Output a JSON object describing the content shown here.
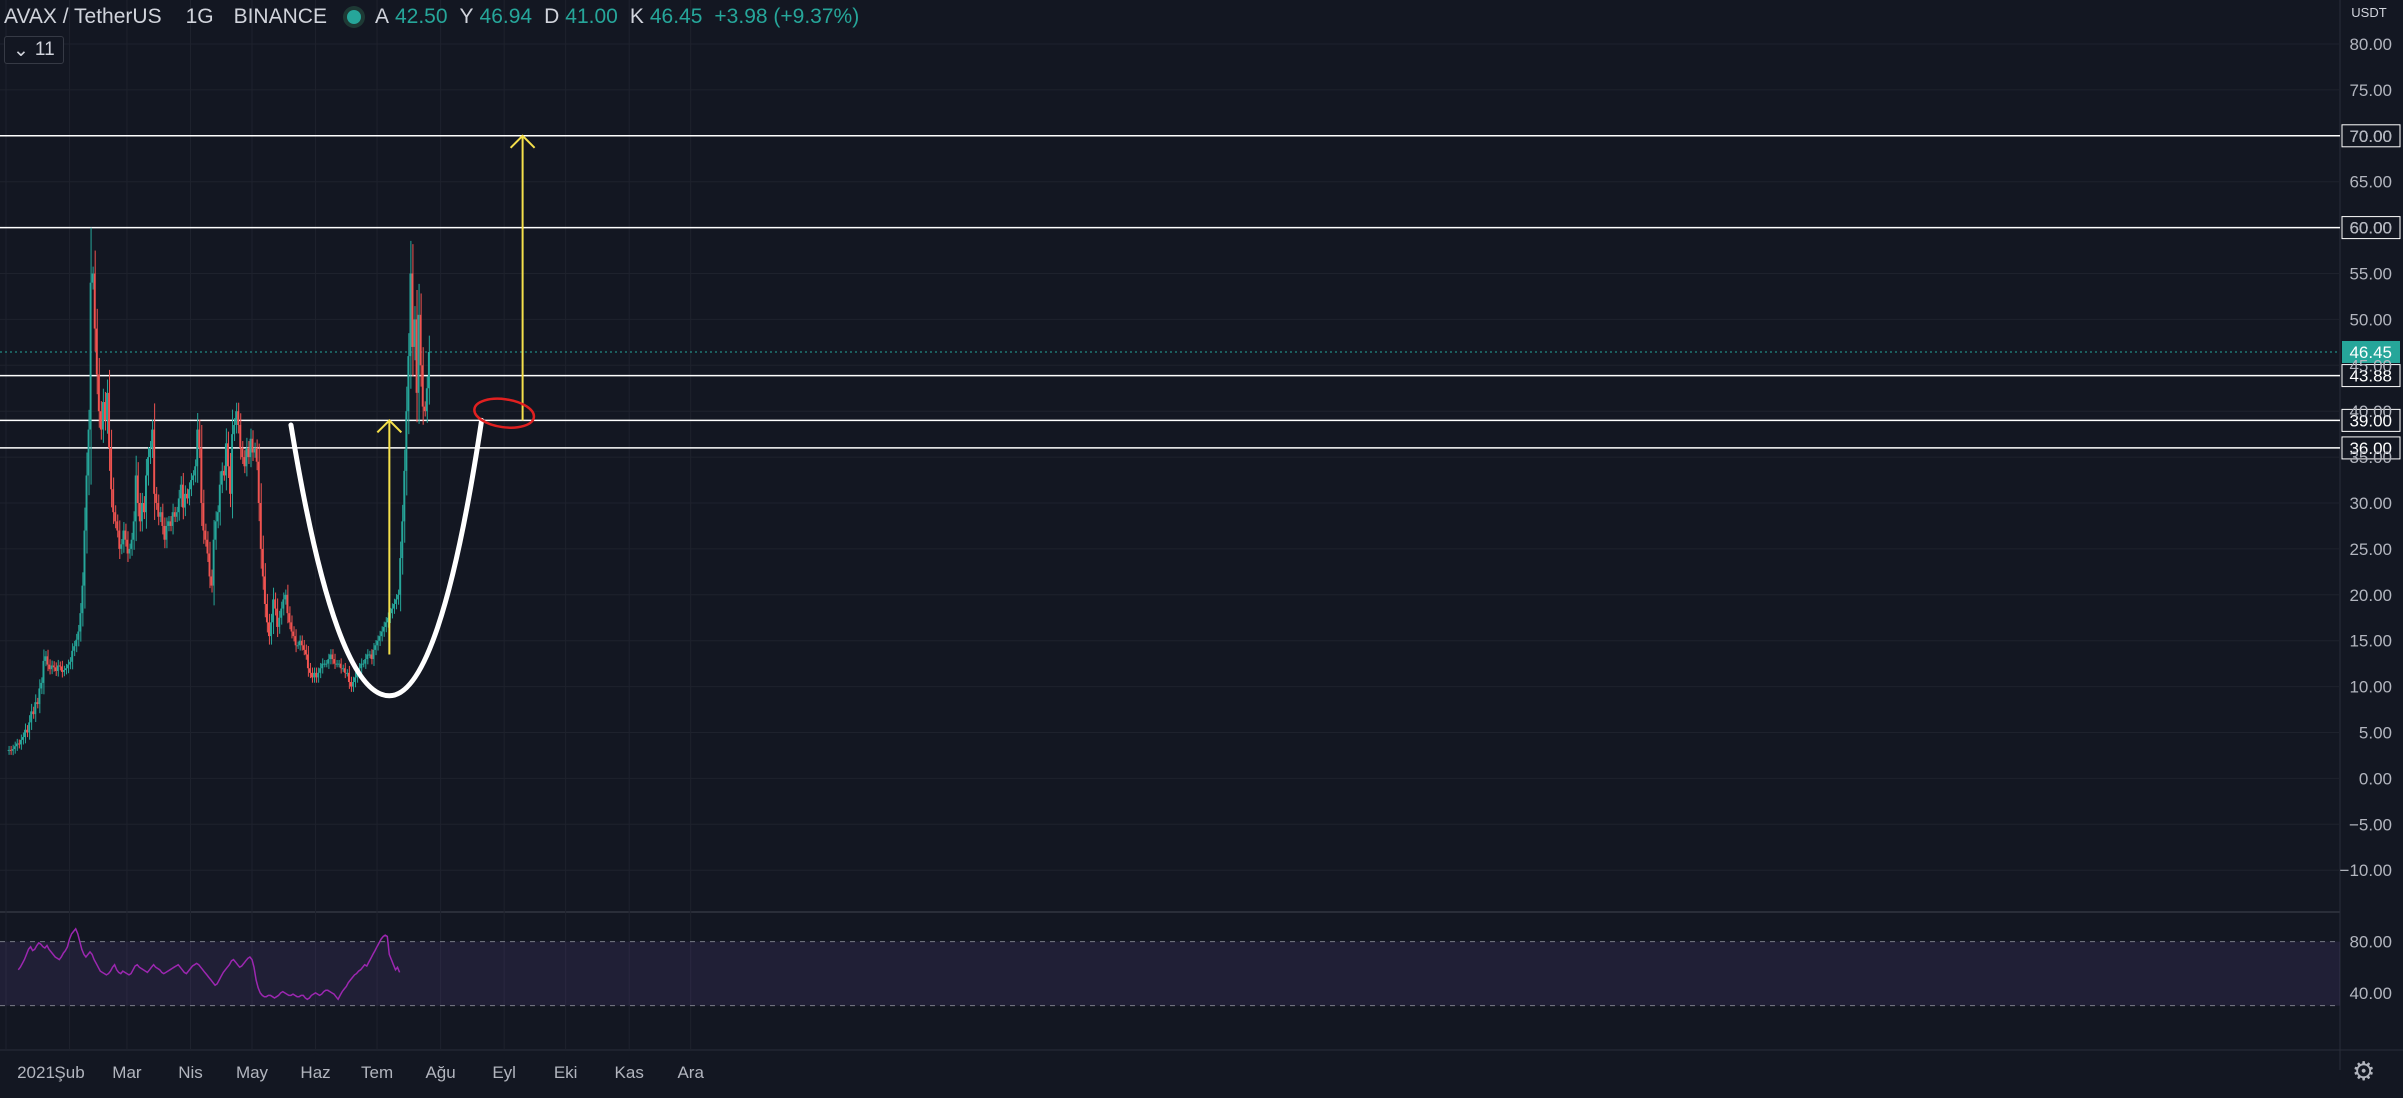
{
  "header": {
    "symbol": "AVAX / TetherUS",
    "interval": "1G",
    "exchange": "BINANCE",
    "ohlc": [
      {
        "label": "A",
        "value": "42.50"
      },
      {
        "label": "Y",
        "value": "46.94"
      },
      {
        "label": "D",
        "value": "41.00"
      },
      {
        "label": "K",
        "value": "46.45"
      }
    ],
    "change": "+3.98 (+9.37%)",
    "indicator_count": "11",
    "currency_label": "USDT"
  },
  "colors": {
    "background": "#131722",
    "up": "#26a69a",
    "down": "#ef5350",
    "rsi": "#9c27b0",
    "annotation_yellow": "#f5e04b",
    "annotation_red": "#e02020",
    "lines": "#ffffff"
  },
  "icons": {
    "settings": "gear-icon",
    "status": "market-status-dot",
    "indicator_toggle": "chevron-down-icon"
  },
  "chart_data": {
    "type": "candlestick",
    "y_ticks": [
      "80.00",
      "75.00",
      "70.00",
      "65.00",
      "60.00",
      "55.00",
      "50.00",
      "45.00",
      "40.00",
      "35.00",
      "30.00",
      "25.00",
      "20.00",
      "15.00",
      "10.00",
      "5.00",
      "0.00",
      "−5.00",
      "−10.00"
    ],
    "ylim": [
      -10,
      80
    ],
    "x_ticks": [
      "2021",
      "Şub",
      "Mar",
      "Nis",
      "May",
      "Haz",
      "Tem",
      "Ağu",
      "Eyl",
      "Eki",
      "Kas",
      "Ara"
    ],
    "last_price": "46.45",
    "horizontal_levels": [
      {
        "value": 70.0,
        "label": "70.00"
      },
      {
        "value": 60.0,
        "label": "60.00"
      },
      {
        "value": 43.88,
        "label": "43.88"
      },
      {
        "value": 39.0,
        "label": "39.00"
      },
      {
        "value": 36.0,
        "label": "36.00"
      }
    ],
    "annotations": {
      "cup_left_rim": {
        "date": "May 20",
        "value": 38.5
      },
      "cup_bottom": {
        "date": "Jul 7",
        "value": 9
      },
      "cup_right_rim": {
        "date": "Aug 21",
        "value": 39
      },
      "target_arrow_1": {
        "date": "Jul 7",
        "from": 13.5,
        "to": 39
      },
      "target_arrow_2": {
        "date": "Sep 10",
        "from": 39,
        "to": 70
      },
      "highlight_circle": {
        "date": "Sep 1",
        "value": 40
      }
    },
    "price_series": [
      3.0,
      3.1,
      3.0,
      3.2,
      3.5,
      3.8,
      3.7,
      4.2,
      4.5,
      5.3,
      5.0,
      6.1,
      7.3,
      7.0,
      8.3,
      8.1,
      9.8,
      10.4,
      12.8,
      13.3,
      12.4,
      11.9,
      12.3,
      12.1,
      11.7,
      12.3,
      12.2,
      11.6,
      11.8,
      12.0,
      12.4,
      12.7,
      13.9,
      14.4,
      15.1,
      16.0,
      18.0,
      21.0,
      27.0,
      33.0,
      38.0,
      54.0,
      55.0,
      49.0,
      44.0,
      40.0,
      38.0,
      41.0,
      39.0,
      42.0,
      36.0,
      31.5,
      29.0,
      28.0,
      27.0,
      25.0,
      25.5,
      27.0,
      26.0,
      24.5,
      25.0,
      26.0,
      28.0,
      33.0,
      30.0,
      28.0,
      30.0,
      29.0,
      33.0,
      35.0,
      36.0,
      38.0,
      31.0,
      30.0,
      28.5,
      29.0,
      27.5,
      26.0,
      27.5,
      28.0,
      27.5,
      29.0,
      28.5,
      29.0,
      30.5,
      32.0,
      29.5,
      31.0,
      30.5,
      31.5,
      32.5,
      33.0,
      34.0,
      38.0,
      36.0,
      30.0,
      27.0,
      26.0,
      24.5,
      22.0,
      21.0,
      26.0,
      28.0,
      29.0,
      32.0,
      33.5,
      33.0,
      36.5,
      34.0,
      31.0,
      37.5,
      38.5,
      40.0,
      38.5,
      36.0,
      35.0,
      34.0,
      36.0,
      35.0,
      37.0,
      35.5,
      36.0,
      34.5,
      30.0,
      25.0,
      22.0,
      19.0,
      17.0,
      15.5,
      17.0,
      19.5,
      18.5,
      16.5,
      17.5,
      18.5,
      19.5,
      20.0,
      18.0,
      17.0,
      16.0,
      15.5,
      14.5,
      14.5,
      15.0,
      14.5,
      14.0,
      13.5,
      12.0,
      11.5,
      11.0,
      11.5,
      11.0,
      11.5,
      12.0,
      12.5,
      12.5,
      12.5,
      13.0,
      13.5,
      13.0,
      12.5,
      12.5,
      12.5,
      12.0,
      12.0,
      11.5,
      11.5,
      10.5,
      10.0,
      10.5,
      11.0,
      11.5,
      12.0,
      12.5,
      12.5,
      13.0,
      13.5,
      13.5,
      13.0,
      14.0,
      14.5,
      15.0,
      15.5,
      16.0,
      16.5,
      17.0,
      17.5,
      18.0,
      18.5,
      19.0,
      19.5,
      20.0,
      24.0,
      28.0,
      33.5,
      40.0,
      46.0,
      55.0,
      47.0,
      50.0,
      42.0,
      50.5,
      45.0,
      40.5,
      40.0,
      42.5,
      46.45
    ],
    "rsi": {
      "levels": [
        80,
        40
      ],
      "tick_labels": [
        "80.00",
        "40.00"
      ],
      "series": [
        58,
        60,
        63,
        66,
        70,
        74,
        76,
        73,
        74,
        77,
        79,
        78,
        76,
        75,
        77,
        74,
        72,
        70,
        68,
        67,
        66,
        68,
        71,
        73,
        76,
        82,
        86,
        88,
        90,
        86,
        80,
        74,
        70,
        68,
        70,
        72,
        70,
        66,
        63,
        60,
        57,
        56,
        55,
        54,
        55,
        57,
        60,
        62,
        58,
        56,
        55,
        57,
        56,
        55,
        54,
        55,
        58,
        61,
        62,
        60,
        59,
        58,
        57,
        56,
        58,
        60,
        62,
        60,
        59,
        58,
        56,
        55,
        56,
        57,
        58,
        59,
        60,
        61,
        62,
        60,
        58,
        56,
        55,
        57,
        59,
        61,
        62,
        63,
        62,
        60,
        58,
        56,
        54,
        52,
        50,
        48,
        46,
        47,
        50,
        53,
        56,
        58,
        60,
        62,
        65,
        66,
        64,
        62,
        60,
        61,
        63,
        65,
        67,
        68,
        66,
        60,
        50,
        44,
        40,
        38,
        37,
        37,
        38,
        38,
        37,
        36,
        37,
        38,
        40,
        41,
        40,
        39,
        38,
        38,
        39,
        38,
        37,
        37,
        38,
        38,
        36,
        35,
        36,
        38,
        39,
        40,
        39,
        38,
        39,
        41,
        42,
        42,
        41,
        40,
        39,
        37,
        35,
        38,
        41,
        43,
        45,
        48,
        50,
        52,
        54,
        55,
        57,
        58,
        60,
        62,
        61,
        64,
        67,
        70,
        73,
        76,
        79,
        82,
        84,
        85,
        84,
        70,
        66,
        62,
        58,
        60,
        56
      ]
    }
  }
}
